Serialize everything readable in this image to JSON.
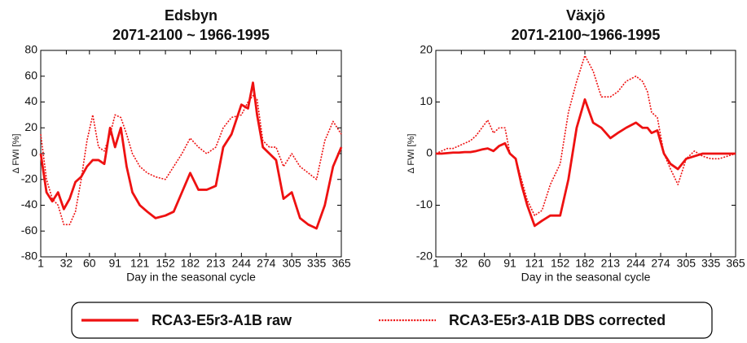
{
  "chart_data": [
    {
      "type": "line",
      "title": "Edsbyn",
      "subtitle": "2071-2100 ~ 1966-1995",
      "xlabel": "Day in the seasonal cycle",
      "ylabel": "Δ FWI [%]",
      "xlim": [
        1,
        365
      ],
      "xticks": [
        1,
        32,
        60,
        91,
        121,
        152,
        182,
        213,
        244,
        274,
        305,
        335,
        365
      ],
      "ylim": [
        -80,
        80
      ],
      "yticks": [
        -80,
        -60,
        -40,
        -20,
        0,
        20,
        40,
        60,
        80
      ],
      "grid": false,
      "x": [
        1,
        8,
        15,
        22,
        29,
        36,
        43,
        50,
        57,
        64,
        71,
        78,
        85,
        91,
        98,
        105,
        112,
        121,
        130,
        140,
        152,
        162,
        172,
        182,
        192,
        202,
        213,
        222,
        232,
        244,
        252,
        258,
        263,
        270,
        278,
        286,
        295,
        305,
        315,
        325,
        335,
        345,
        355,
        365
      ],
      "series": [
        {
          "name": "RCA3-E5r3-A1B raw",
          "color": "#ee1111",
          "linestyle": "solid",
          "values": [
            0,
            -30,
            -37,
            -30,
            -43,
            -35,
            -22,
            -18,
            -10,
            -5,
            -5,
            -8,
            20,
            5,
            20,
            -10,
            -30,
            -40,
            -45,
            -50,
            -48,
            -45,
            -30,
            -15,
            -28,
            -28,
            -25,
            5,
            15,
            38,
            35,
            55,
            30,
            5,
            0,
            -5,
            -35,
            -30,
            -50,
            -55,
            -58,
            -40,
            -10,
            5
          ]
        },
        {
          "name": "RCA3-E5r3-A1B DBS corrected",
          "color": "#ee1111",
          "linestyle": "dotted",
          "values": [
            15,
            -20,
            -35,
            -40,
            -55,
            -55,
            -45,
            -20,
            10,
            30,
            5,
            2,
            15,
            30,
            28,
            15,
            0,
            -10,
            -15,
            -18,
            -20,
            -10,
            0,
            12,
            5,
            0,
            5,
            20,
            28,
            30,
            40,
            45,
            42,
            10,
            5,
            5,
            -10,
            0,
            -10,
            -15,
            -20,
            10,
            25,
            15
          ]
        }
      ]
    },
    {
      "type": "line",
      "title": "Växjö",
      "subtitle": "2071-2100~1966-1995",
      "xlabel": "Day in the seasonal cycle",
      "ylabel": "Δ FWI [%]",
      "xlim": [
        1,
        365
      ],
      "xticks": [
        1,
        32,
        60,
        91,
        121,
        152,
        182,
        213,
        244,
        274,
        305,
        335,
        365
      ],
      "ylim": [
        -20,
        20
      ],
      "yticks": [
        -20,
        -10,
        0,
        10,
        20
      ],
      "grid": false,
      "x": [
        1,
        8,
        15,
        22,
        29,
        36,
        43,
        50,
        57,
        64,
        71,
        78,
        85,
        91,
        98,
        105,
        112,
        121,
        130,
        140,
        152,
        162,
        172,
        182,
        192,
        202,
        213,
        222,
        232,
        244,
        252,
        258,
        263,
        270,
        278,
        286,
        295,
        305,
        315,
        325,
        335,
        345,
        355,
        365
      ],
      "series": [
        {
          "name": "RCA3-E5r3-A1B raw",
          "color": "#ee1111",
          "linestyle": "solid",
          "values": [
            0,
            0,
            0.1,
            0.2,
            0.2,
            0.3,
            0.3,
            0.5,
            0.8,
            1,
            0.5,
            1.5,
            2,
            0,
            -1,
            -6,
            -10,
            -14,
            -13,
            -12,
            -12,
            -5,
            5,
            10.5,
            6,
            5,
            3,
            4,
            5,
            6,
            5,
            5,
            4,
            4.5,
            0,
            -2,
            -3,
            -1,
            -0.5,
            0,
            0,
            0,
            0,
            0
          ]
        },
        {
          "name": "RCA3-E5r3-A1B DBS corrected",
          "color": "#ee1111",
          "linestyle": "dotted",
          "values": [
            0,
            0.5,
            1,
            1,
            1.5,
            2,
            2.5,
            3.5,
            5,
            6.5,
            4,
            5,
            5,
            0,
            -1,
            -5,
            -9,
            -12,
            -11,
            -6,
            -2,
            8,
            14,
            19,
            16,
            11,
            11,
            12,
            14,
            15,
            14,
            12,
            8,
            7,
            0,
            -3,
            -6,
            -1,
            0.5,
            -0.5,
            -1,
            -1,
            -0.5,
            0
          ]
        }
      ]
    }
  ]
}
